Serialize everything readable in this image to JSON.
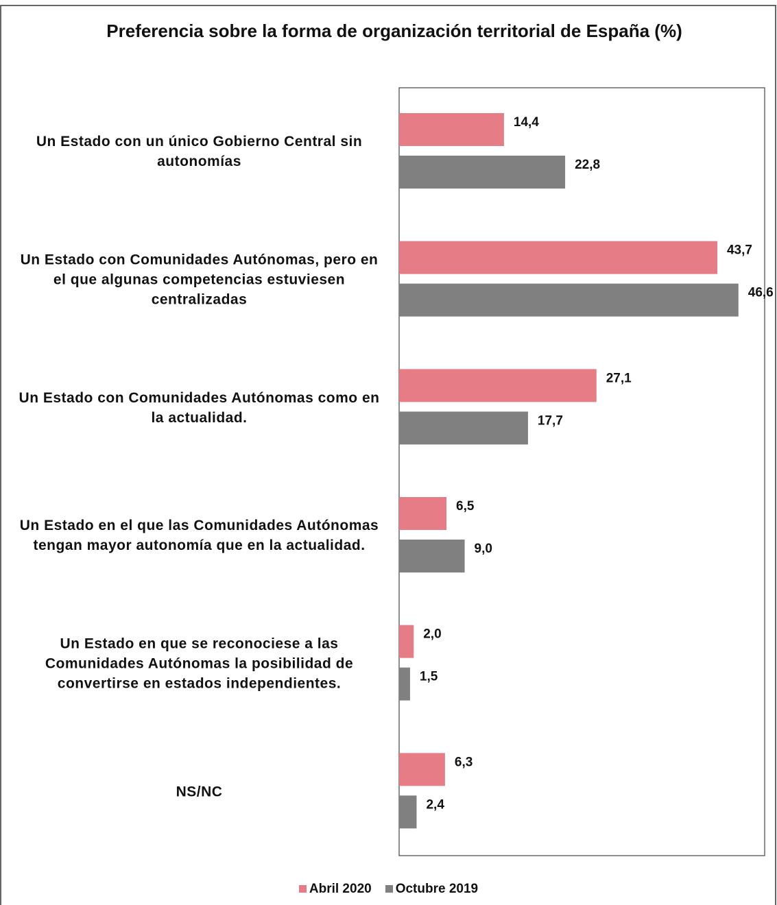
{
  "chart_data": {
    "type": "barh",
    "title": "Preferencia sobre la forma de organización territorial de España (%)",
    "categories": [
      "Un Estado con un único Gobierno Central sin autonomías",
      "Un Estado con Comunidades Autónomas, pero en el que algunas competencias estuviesen centralizadas",
      "Un Estado con Comunidades Autónomas como en la actualidad.",
      "Un Estado en el que las Comunidades Autónomas tengan mayor autonomía que en la actualidad.",
      "Un Estado en que se reconociese a las Comunidades Autónomas la posibilidad de convertirse en estados independientes.",
      "NS/NC"
    ],
    "series": [
      {
        "name": "Abril 2020",
        "color": "#e57c86",
        "values": [
          14.4,
          43.7,
          27.1,
          6.5,
          2.0,
          6.3
        ],
        "value_labels": [
          "14,4",
          "43,7",
          "27,1",
          "6,5",
          "2,0",
          "6,3"
        ]
      },
      {
        "name": "Octubre 2019",
        "color": "#808080",
        "values": [
          22.8,
          46.6,
          17.7,
          9.0,
          1.5,
          2.4
        ],
        "value_labels": [
          "22,8",
          "46,6",
          "17,7",
          "9,0",
          "1,5",
          "2,4"
        ]
      }
    ],
    "xlim": [
      0,
      50.2
    ],
    "legend": "bottom"
  }
}
